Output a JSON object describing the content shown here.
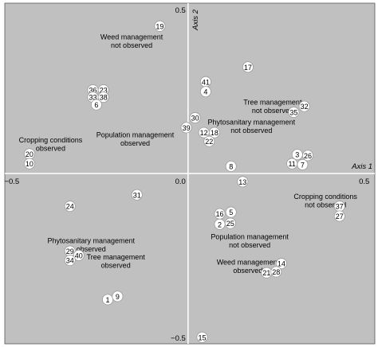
{
  "chart_data": {
    "type": "scatter",
    "xlim": [
      -0.52,
      0.53
    ],
    "ylim": [
      -0.52,
      0.52
    ],
    "grid": false,
    "colors": {
      "background": "#c0c0c0",
      "axes": "#ffffff",
      "point_fill": "#ffffff",
      "text": "#000000"
    },
    "axes": {
      "x_title": "Axis 1",
      "y_title": "Axis 2",
      "x_ticks": [
        {
          "value": -0.5,
          "label": "−0.5"
        },
        {
          "value": 0.0,
          "label": "0.0"
        },
        {
          "value": 0.5,
          "label": "0.5"
        }
      ],
      "y_ticks": [
        {
          "value": 0.5,
          "label": "0.5"
        },
        {
          "value": -0.5,
          "label": "−0.5"
        }
      ]
    },
    "points": [
      {
        "id": "19",
        "x": -0.08,
        "y": 0.45
      },
      {
        "id": "17",
        "x": 0.17,
        "y": 0.325
      },
      {
        "id": "41",
        "x": 0.05,
        "y": 0.28
      },
      {
        "id": "4",
        "x": 0.05,
        "y": 0.25
      },
      {
        "id": "36",
        "x": -0.27,
        "y": 0.255
      },
      {
        "id": "23",
        "x": -0.24,
        "y": 0.255
      },
      {
        "id": "33",
        "x": -0.27,
        "y": 0.233
      },
      {
        "id": "38",
        "x": -0.24,
        "y": 0.233
      },
      {
        "id": "6",
        "x": -0.26,
        "y": 0.21
      },
      {
        "id": "32",
        "x": 0.33,
        "y": 0.205
      },
      {
        "id": "35",
        "x": 0.3,
        "y": 0.187
      },
      {
        "id": "30",
        "x": 0.02,
        "y": 0.17
      },
      {
        "id": "39",
        "x": -0.005,
        "y": 0.14
      },
      {
        "id": "12",
        "x": 0.045,
        "y": 0.125
      },
      {
        "id": "18",
        "x": 0.075,
        "y": 0.125
      },
      {
        "id": "22",
        "x": 0.06,
        "y": 0.098
      },
      {
        "id": "20",
        "x": -0.45,
        "y": 0.06
      },
      {
        "id": "10",
        "x": -0.45,
        "y": 0.03
      },
      {
        "id": "3",
        "x": 0.31,
        "y": 0.058
      },
      {
        "id": "26",
        "x": 0.34,
        "y": 0.055
      },
      {
        "id": "11",
        "x": 0.295,
        "y": 0.03
      },
      {
        "id": "7",
        "x": 0.325,
        "y": 0.027
      },
      {
        "id": "8",
        "x": 0.122,
        "y": 0.022
      },
      {
        "id": "13",
        "x": 0.155,
        "y": -0.025
      },
      {
        "id": "31",
        "x": -0.145,
        "y": -0.065
      },
      {
        "id": "24",
        "x": -0.335,
        "y": -0.1
      },
      {
        "id": "37",
        "x": 0.43,
        "y": -0.1
      },
      {
        "id": "27",
        "x": 0.43,
        "y": -0.13
      },
      {
        "id": "16",
        "x": 0.09,
        "y": -0.123
      },
      {
        "id": "5",
        "x": 0.122,
        "y": -0.118
      },
      {
        "id": "2",
        "x": 0.09,
        "y": -0.155
      },
      {
        "id": "25",
        "x": 0.12,
        "y": -0.152
      },
      {
        "id": "29",
        "x": -0.335,
        "y": -0.237
      },
      {
        "id": "40",
        "x": -0.31,
        "y": -0.25
      },
      {
        "id": "34",
        "x": -0.335,
        "y": -0.265
      },
      {
        "id": "14",
        "x": 0.265,
        "y": -0.275
      },
      {
        "id": "21",
        "x": 0.223,
        "y": -0.303
      },
      {
        "id": "28",
        "x": 0.25,
        "y": -0.3
      },
      {
        "id": "1",
        "x": -0.228,
        "y": -0.385
      },
      {
        "id": "9",
        "x": -0.2,
        "y": -0.375
      },
      {
        "id": "15",
        "x": 0.04,
        "y": -0.5
      }
    ],
    "annotations": [
      {
        "lines": [
          "Weed management",
          "not observed"
        ],
        "x": -0.16,
        "y": 0.41
      },
      {
        "lines": [
          "Tree management",
          "not observed"
        ],
        "x": 0.24,
        "y": 0.21
      },
      {
        "lines": [
          "Phytosanitary management",
          "not observed"
        ],
        "x": 0.18,
        "y": 0.15
      },
      {
        "lines": [
          "Population management",
          "observed"
        ],
        "x": -0.15,
        "y": 0.11
      },
      {
        "lines": [
          "Cropping conditions",
          "observed"
        ],
        "x": -0.39,
        "y": 0.095
      },
      {
        "lines": [
          "Cropping conditions",
          "not observed"
        ],
        "x": 0.39,
        "y": -0.078
      },
      {
        "lines": [
          "Population management",
          "not observed"
        ],
        "x": 0.175,
        "y": -0.2
      },
      {
        "lines": [
          "Phytosanitary management",
          "observed"
        ],
        "x": -0.275,
        "y": -0.213
      },
      {
        "lines": [
          "Tree management",
          "observed"
        ],
        "x": -0.205,
        "y": -0.263
      },
      {
        "lines": [
          "Weed management",
          "observed"
        ],
        "x": 0.17,
        "y": -0.278
      }
    ]
  }
}
